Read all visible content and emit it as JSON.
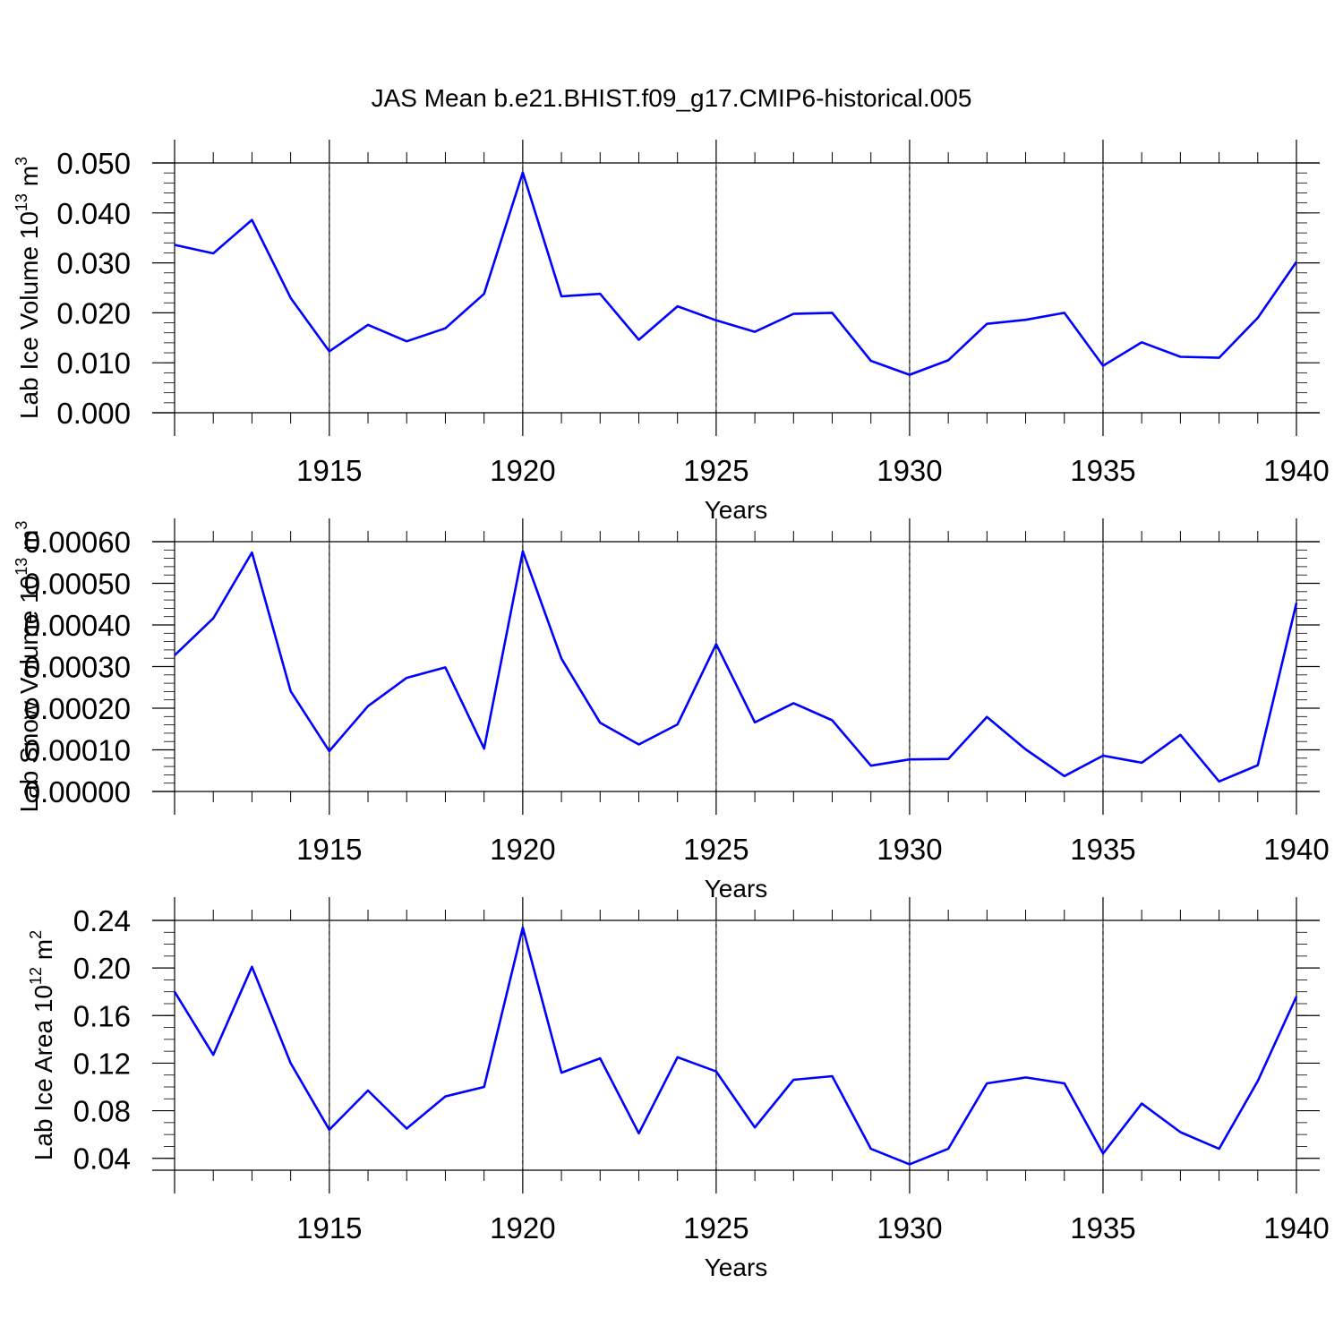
{
  "title": "JAS Mean b.e21.BHIST.f09_g17.CMIP6-historical.005",
  "line_color": "#0000ff",
  "chart_data": [
    {
      "type": "line",
      "xlabel": "Years",
      "ylabel": "Lab Ice Volume 10",
      "ylabel_sup": "13",
      "ylabel_unit": " m",
      "ylabel_unit_sup": "3",
      "xlim": [
        1911,
        1940
      ],
      "xticks": [
        1915,
        1920,
        1925,
        1930,
        1935,
        1940
      ],
      "ylim": [
        0,
        0.05
      ],
      "yticks": [
        0.0,
        0.01,
        0.02,
        0.03,
        0.04,
        0.05
      ],
      "ytick_labels": [
        "0.000",
        "0.010",
        "0.020",
        "0.030",
        "0.040",
        "0.050"
      ],
      "yminor_step": 0.002,
      "grid": "dashed vertical at major x ticks",
      "x": [
        1911,
        1912,
        1913,
        1914,
        1915,
        1916,
        1917,
        1918,
        1919,
        1920,
        1921,
        1922,
        1923,
        1924,
        1925,
        1926,
        1927,
        1928,
        1929,
        1930,
        1931,
        1932,
        1933,
        1934,
        1935,
        1936,
        1937,
        1938,
        1939,
        1940
      ],
      "series": [
        {
          "values": [
            0.0336,
            0.0319,
            0.0386,
            0.023,
            0.0123,
            0.0176,
            0.0143,
            0.0169,
            0.0238,
            0.0481,
            0.0233,
            0.0238,
            0.0146,
            0.0213,
            0.0185,
            0.0162,
            0.0198,
            0.02,
            0.0104,
            0.0076,
            0.0105,
            0.0178,
            0.0186,
            0.02,
            0.0094,
            0.0141,
            0.0112,
            0.011,
            0.019,
            0.0302
          ]
        }
      ]
    },
    {
      "type": "line",
      "xlabel": "Years",
      "ylabel": "Lab Snow Volume 10",
      "ylabel_sup": "13",
      "ylabel_unit": " m",
      "ylabel_unit_sup": "3",
      "xlim": [
        1911,
        1940
      ],
      "xticks": [
        1915,
        1920,
        1925,
        1930,
        1935,
        1940
      ],
      "ylim": [
        0,
        0.0006
      ],
      "yticks": [
        0.0,
        0.0001,
        0.0002,
        0.0003,
        0.0004,
        0.0005,
        0.0006
      ],
      "ytick_labels": [
        "0.00000",
        "0.00010",
        "0.00020",
        "0.00030",
        "0.00040",
        "0.00050",
        "0.00060"
      ],
      "yminor_step": 2e-05,
      "grid": "dashed vertical at major x ticks",
      "x": [
        1911,
        1912,
        1913,
        1914,
        1915,
        1916,
        1917,
        1918,
        1919,
        1920,
        1921,
        1922,
        1923,
        1924,
        1925,
        1926,
        1927,
        1928,
        1929,
        1930,
        1931,
        1932,
        1933,
        1934,
        1935,
        1936,
        1937,
        1938,
        1939,
        1940
      ],
      "series": [
        {
          "values": [
            0.000327,
            0.000416,
            0.000574,
            0.000241,
            9.7e-05,
            0.000205,
            0.000273,
            0.000298,
            0.000103,
            0.000577,
            0.000319,
            0.000165,
            0.000113,
            0.000161,
            0.000354,
            0.000166,
            0.000212,
            0.000171,
            6.2e-05,
            7.7e-05,
            7.8e-05,
            0.000179,
            0.000101,
            3.7e-05,
            8.6e-05,
            6.9e-05,
            0.000136,
            2.4e-05,
            6.3e-05,
            0.000453
          ]
        }
      ]
    },
    {
      "type": "line",
      "xlabel": "Years",
      "ylabel": "Lab Ice Area 10",
      "ylabel_sup": "12",
      "ylabel_unit": " m",
      "ylabel_unit_sup": "2",
      "xlim": [
        1911,
        1940
      ],
      "xticks": [
        1915,
        1920,
        1925,
        1930,
        1935,
        1940
      ],
      "ylim": [
        0.03,
        0.24
      ],
      "yticks": [
        0.04,
        0.08,
        0.12,
        0.16,
        0.2,
        0.24
      ],
      "ytick_labels": [
        "0.04",
        "0.08",
        "0.12",
        "0.16",
        "0.20",
        "0.24"
      ],
      "yminor_step": 0.01,
      "grid": "dashed vertical at major x ticks",
      "x": [
        1911,
        1912,
        1913,
        1914,
        1915,
        1916,
        1917,
        1918,
        1919,
        1920,
        1921,
        1922,
        1923,
        1924,
        1925,
        1926,
        1927,
        1928,
        1929,
        1930,
        1931,
        1932,
        1933,
        1934,
        1935,
        1936,
        1937,
        1938,
        1939,
        1940
      ],
      "series": [
        {
          "values": [
            0.18,
            0.127,
            0.201,
            0.12,
            0.064,
            0.097,
            0.065,
            0.092,
            0.1,
            0.234,
            0.112,
            0.124,
            0.061,
            0.125,
            0.113,
            0.066,
            0.106,
            0.109,
            0.048,
            0.035,
            0.048,
            0.103,
            0.108,
            0.103,
            0.044,
            0.086,
            0.062,
            0.048,
            0.105,
            0.176
          ]
        }
      ]
    }
  ]
}
